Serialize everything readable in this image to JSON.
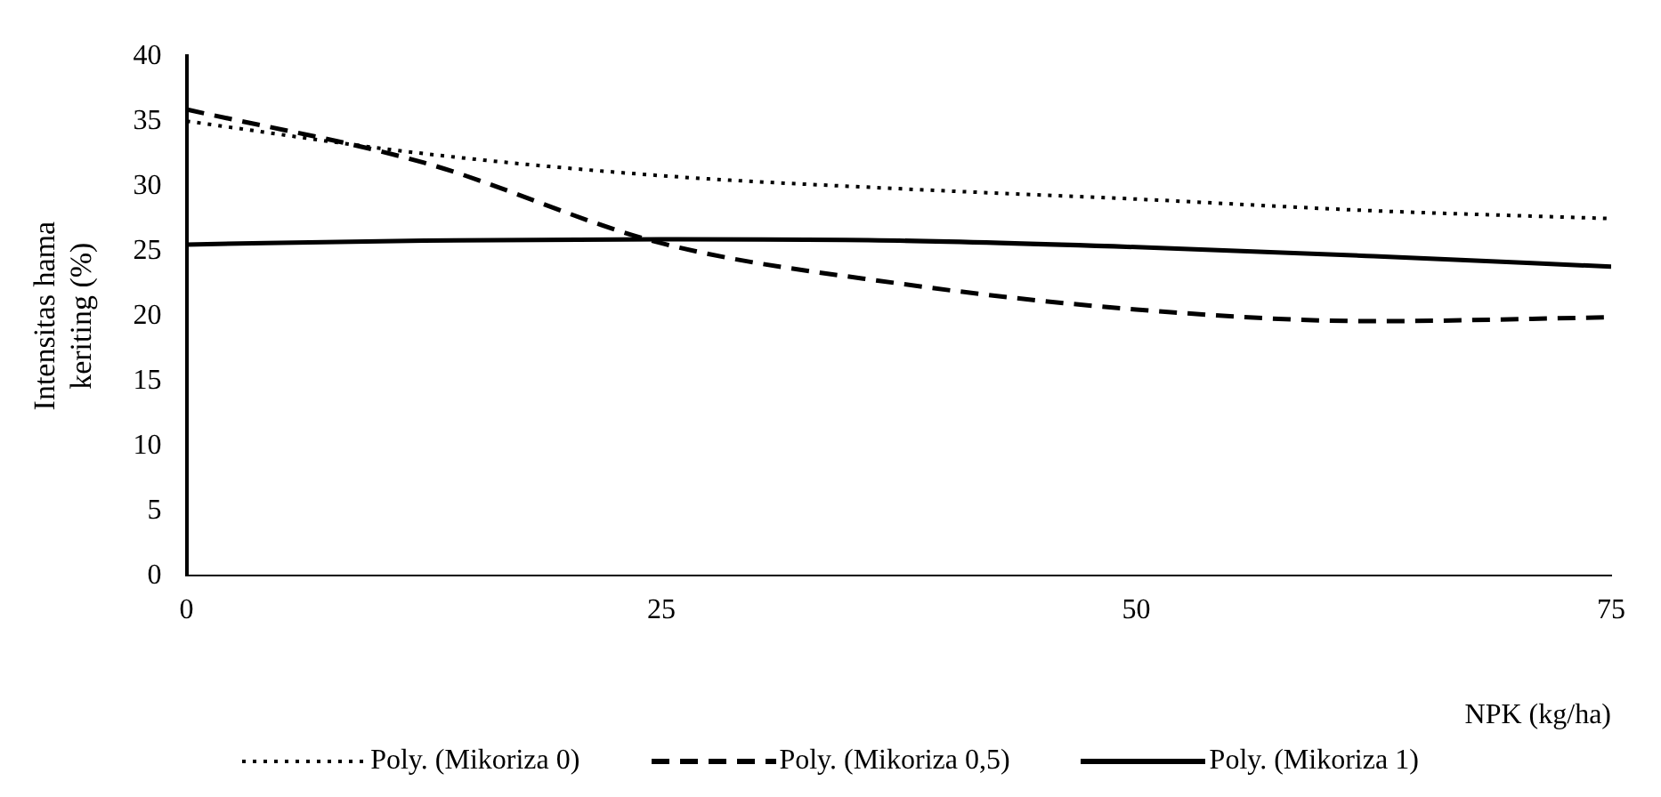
{
  "chart_data": {
    "type": "line",
    "xlabel": "NPK (kg/ha)",
    "ylabel": "Intensitas hama keriting (%)",
    "x": [
      0,
      12.5,
      25,
      37.5,
      50,
      62.5,
      75
    ],
    "xlim": [
      0,
      75
    ],
    "xticks": [
      0,
      25,
      50,
      75
    ],
    "ylim": [
      0,
      40
    ],
    "yticks": [
      0,
      5,
      10,
      15,
      20,
      25,
      30,
      35,
      40
    ],
    "grid": false,
    "legend": "bottom",
    "marker": "none",
    "series": [
      {
        "name": "Poly. (Mikoriza 0)",
        "color": "#000000",
        "line_style": "dotted",
        "values": [
          35,
          32.5,
          30.8,
          29.8,
          29,
          28.1,
          27.5
        ]
      },
      {
        "name": "Poly. (Mikoriza 0,5)",
        "color": "#000000",
        "line_style": "dashed",
        "values": [
          35.9,
          31.8,
          25.6,
          22.5,
          20.5,
          19.6,
          19.9
        ]
      },
      {
        "name": "Poly. (Mikoriza 1)",
        "color": "#000000",
        "line_style": "solid",
        "values": [
          25.5,
          25.8,
          25.9,
          25.8,
          25.3,
          24.6,
          23.8
        ]
      }
    ]
  }
}
